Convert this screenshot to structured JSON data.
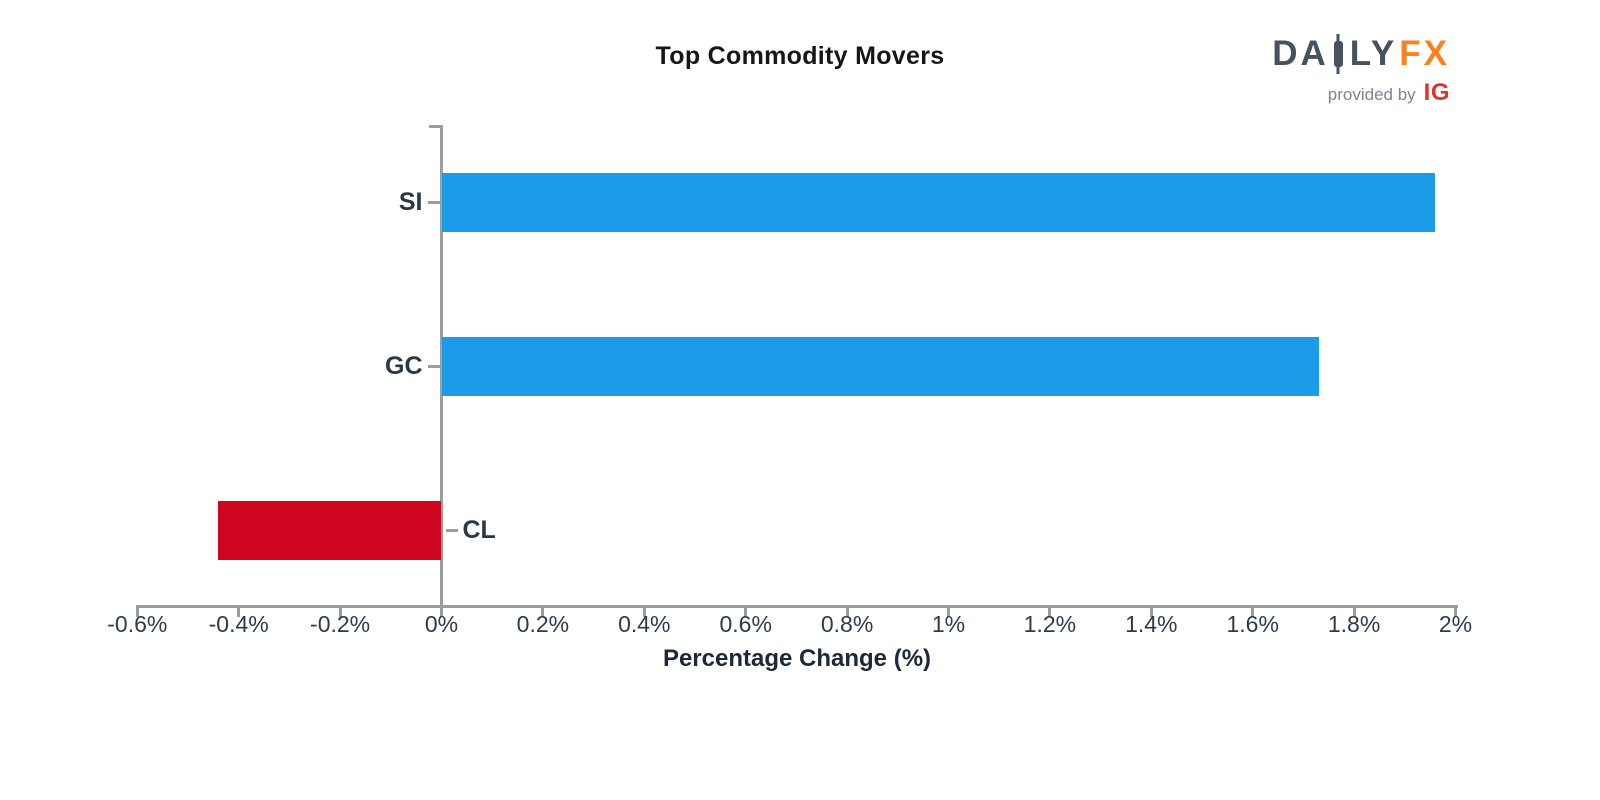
{
  "title": "Top Commodity Movers",
  "logo": {
    "part1": "DA",
    "part2": "LY",
    "part3": "FX",
    "candlestick_icon": "candlestick-icon",
    "provided_by": "provided by",
    "ig": "IG",
    "daily_color": "#47525F",
    "fx_color": "#F8821D",
    "ig_color": "#DD352B"
  },
  "chart_data": {
    "type": "bar",
    "orientation": "horizontal",
    "title": "Top Commodity Movers",
    "xlabel": "Percentage Change (%)",
    "ylabel": "",
    "categories": [
      "SI",
      "GC",
      "CL"
    ],
    "values": [
      1.96,
      1.73,
      -0.44
    ],
    "xlim": [
      -0.6,
      2.0
    ],
    "grid": false,
    "legend": false,
    "xticks": [
      {
        "value": -0.6,
        "label": "-0.6%"
      },
      {
        "value": -0.4,
        "label": "-0.4%"
      },
      {
        "value": -0.2,
        "label": "-0.2%"
      },
      {
        "value": 0,
        "label": "0%"
      },
      {
        "value": 0.2,
        "label": "0.2%"
      },
      {
        "value": 0.4,
        "label": "0.4%"
      },
      {
        "value": 0.6,
        "label": "0.6%"
      },
      {
        "value": 0.8,
        "label": "0.8%"
      },
      {
        "value": 1,
        "label": "1%"
      },
      {
        "value": 1.2,
        "label": "1.2%"
      },
      {
        "value": 1.4,
        "label": "1.4%"
      },
      {
        "value": 1.6,
        "label": "1.6%"
      },
      {
        "value": 1.8,
        "label": "1.8%"
      },
      {
        "value": 2,
        "label": "2%"
      }
    ],
    "colors": {
      "positive": "#1C9BE8",
      "negative": "#D0051F",
      "axis": "#9C9C9C",
      "tick_text": "#2E3B4B",
      "category_text": "#2A3747"
    }
  }
}
